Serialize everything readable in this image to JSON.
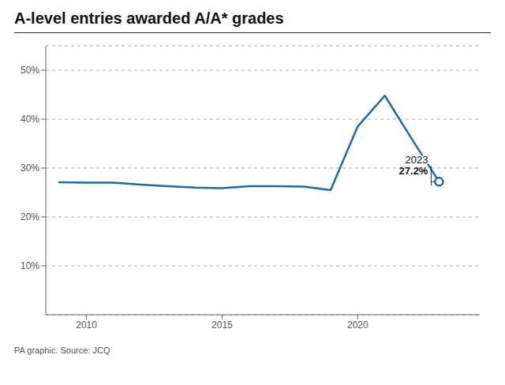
{
  "chart_data": {
    "type": "line",
    "title": "A-level entries awarded A/A* grades",
    "source": "PA graphic. Source: JCQ",
    "x": [
      2009,
      2010,
      2011,
      2012,
      2013,
      2014,
      2015,
      2016,
      2017,
      2018,
      2019,
      2020,
      2021,
      2022,
      2023
    ],
    "values": [
      27.1,
      27.0,
      27.0,
      26.6,
      26.3,
      26.0,
      25.9,
      26.3,
      26.3,
      26.2,
      25.5,
      38.5,
      44.8,
      35.9,
      27.2
    ],
    "color": "#1a6aad",
    "xlim": [
      2008.5,
      2024.5
    ],
    "xticks": [
      2010,
      2015,
      2020
    ],
    "ylim": [
      0,
      55
    ],
    "yticks": [
      {
        "value": 10,
        "label": "10%"
      },
      {
        "value": 20,
        "label": "20%"
      },
      {
        "value": 30,
        "label": "30%"
      },
      {
        "value": 40,
        "label": "40%"
      },
      {
        "value": 50,
        "label": "50%"
      }
    ],
    "grid": true,
    "annotations": [
      {
        "x": 2023,
        "y": 27.2,
        "text": [
          "2023",
          "27.2%"
        ]
      }
    ]
  }
}
